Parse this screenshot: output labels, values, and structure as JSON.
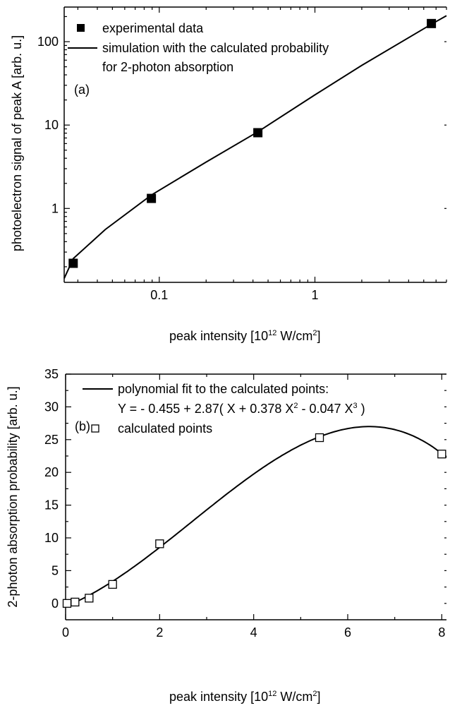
{
  "chart_data": [
    {
      "type": "scatter",
      "panel_label": "(a)",
      "xlabel": "peak intensity [10",
      "xlabel_sup": "12",
      "xlabel_mid": " W/cm",
      "xlabel_sup2": "2",
      "xlabel_end": "]",
      "ylabel": "photoelectron signal of peak A [arb. u.]",
      "xscale": "log",
      "yscale": "log",
      "xlim": [
        0.0245,
        7.0
      ],
      "ylim": [
        0.13,
        260
      ],
      "xticks": [
        {
          "v": 0.1,
          "label": "0.1"
        },
        {
          "v": 1,
          "label": "1"
        }
      ],
      "yticks": [
        {
          "v": 1,
          "label": "1"
        },
        {
          "v": 10,
          "label": "10"
        },
        {
          "v": 100,
          "label": "100"
        }
      ],
      "legend_position": "top-left",
      "series": [
        {
          "name": "experimental data",
          "marker": "filled-square",
          "points": [
            {
              "x": 0.028,
              "y": 0.22
            },
            {
              "x": 0.089,
              "y": 1.32
            },
            {
              "x": 0.43,
              "y": 8.1
            },
            {
              "x": 5.6,
              "y": 165
            }
          ]
        },
        {
          "name": "simulation with the calculated probability",
          "name_line2": "for 2-photon absorption",
          "marker": "line",
          "points": [
            {
              "x": 0.0245,
              "y": 0.145
            },
            {
              "x": 0.028,
              "y": 0.25
            },
            {
              "x": 0.045,
              "y": 0.56
            },
            {
              "x": 0.089,
              "y": 1.45
            },
            {
              "x": 0.2,
              "y": 3.6
            },
            {
              "x": 0.43,
              "y": 8.3
            },
            {
              "x": 1.0,
              "y": 23
            },
            {
              "x": 2.0,
              "y": 52
            },
            {
              "x": 5.6,
              "y": 162
            },
            {
              "x": 7.0,
              "y": 205
            }
          ]
        }
      ]
    },
    {
      "type": "scatter",
      "panel_label": "(b)",
      "xlabel": "peak intensity [10",
      "xlabel_sup": "12",
      "xlabel_mid": " W/cm",
      "xlabel_sup2": "2",
      "xlabel_end": "]",
      "ylabel": "2-photon absorption probability [arb. u.]",
      "xscale": "linear",
      "yscale": "linear",
      "xlim": [
        0,
        8.1
      ],
      "ylim": [
        -2.5,
        35
      ],
      "xticks": [
        {
          "v": 0,
          "label": "0"
        },
        {
          "v": 2,
          "label": "2"
        },
        {
          "v": 4,
          "label": "4"
        },
        {
          "v": 6,
          "label": "6"
        },
        {
          "v": 8,
          "label": "8"
        }
      ],
      "yticks": [
        {
          "v": 0,
          "label": "0"
        },
        {
          "v": 5,
          "label": "5"
        },
        {
          "v": 10,
          "label": "10"
        },
        {
          "v": 15,
          "label": "15"
        },
        {
          "v": 20,
          "label": "20"
        },
        {
          "v": 25,
          "label": "25"
        },
        {
          "v": 30,
          "label": "30"
        },
        {
          "v": 35,
          "label": "35"
        }
      ],
      "legend_position": "top-left",
      "fit_name": "polynomial fit to the calculated points:",
      "fit_equation_parts": [
        "Y = - 0.455 + 2.87( X + 0.378 X",
        "2",
        " - 0.047 X",
        "3",
        " )"
      ],
      "fit_coefficients": {
        "a": -0.455,
        "b": 2.87,
        "c2": 0.378,
        "c3": -0.047
      },
      "series": [
        {
          "name": "calculated points",
          "marker": "open-square",
          "points": [
            {
              "x": 0.03,
              "y": 0.0
            },
            {
              "x": 0.2,
              "y": 0.2
            },
            {
              "x": 0.5,
              "y": 0.8
            },
            {
              "x": 1.0,
              "y": 2.9
            },
            {
              "x": 2.0,
              "y": 9.1
            },
            {
              "x": 5.4,
              "y": 25.3
            },
            {
              "x": 8.0,
              "y": 22.8
            }
          ]
        }
      ]
    }
  ]
}
